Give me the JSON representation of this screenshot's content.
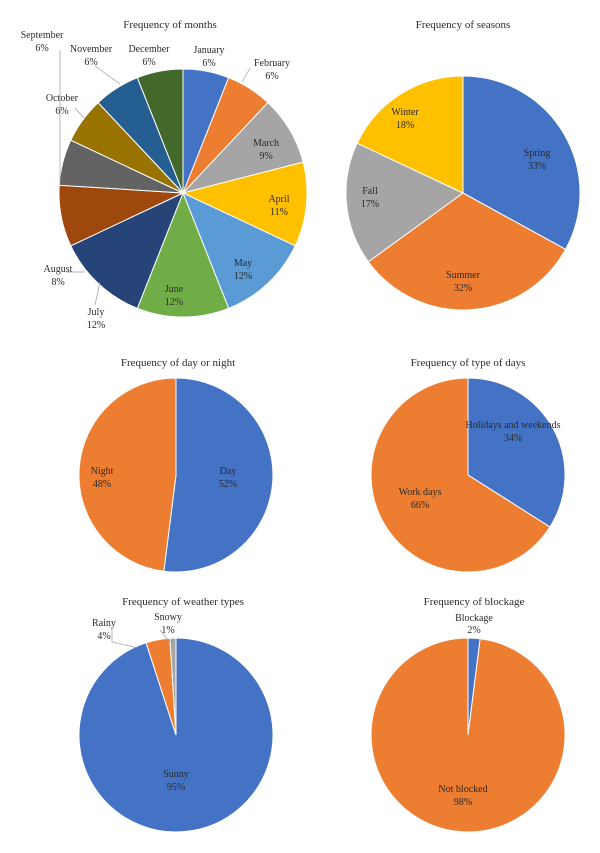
{
  "chart_data": [
    {
      "type": "pie",
      "title": "Frequency of months",
      "slices": [
        {
          "label": "January",
          "value": 6,
          "display": "6%",
          "color": "#4472C4"
        },
        {
          "label": "February",
          "value": 6,
          "display": "6%",
          "color": "#ED7D31"
        },
        {
          "label": "March",
          "value": 9,
          "display": "9%",
          "color": "#A5A5A5"
        },
        {
          "label": "April",
          "value": 11,
          "display": "11%",
          "color": "#FFC000"
        },
        {
          "label": "May",
          "value": 12,
          "display": "12%",
          "color": "#5B9BD5"
        },
        {
          "label": "June",
          "value": 12,
          "display": "12%",
          "color": "#70AD47"
        },
        {
          "label": "July",
          "value": 12,
          "display": "12%",
          "color": "#264478"
        },
        {
          "label": "August",
          "value": 8,
          "display": "8%",
          "color": "#9E480E"
        },
        {
          "label": "",
          "value": 6,
          "display": "",
          "color": "#636363"
        },
        {
          "label": "October",
          "value": 6,
          "display": "6%",
          "color": "#997300"
        },
        {
          "label": "November",
          "value": 6,
          "display": "6%",
          "color": "#255E91"
        },
        {
          "label": "December",
          "value": 6,
          "display": "6%",
          "color": "#43682B"
        }
      ],
      "extra_labels": [
        {
          "label": "September",
          "display": "6%"
        }
      ]
    },
    {
      "type": "pie",
      "title": "Frequency of seasons",
      "slices": [
        {
          "label": "Spring",
          "value": 33,
          "display": "33%",
          "color": "#4472C4"
        },
        {
          "label": "Summer",
          "value": 32,
          "display": "32%",
          "color": "#ED7D31"
        },
        {
          "label": "Fall",
          "value": 17,
          "display": "17%",
          "color": "#A5A5A5"
        },
        {
          "label": "Winter",
          "value": 18,
          "display": "18%",
          "color": "#FFC000"
        }
      ]
    },
    {
      "type": "pie",
      "title": "Frequency of day or night",
      "slices": [
        {
          "label": "Day",
          "value": 52,
          "display": "52%",
          "color": "#4472C4"
        },
        {
          "label": "Night",
          "value": 48,
          "display": "48%",
          "color": "#ED7D31"
        }
      ]
    },
    {
      "type": "pie",
      "title": "Frequency of type of days",
      "slices": [
        {
          "label": "Holidays and weekends",
          "value": 34,
          "display": "34%",
          "color": "#4472C4"
        },
        {
          "label": "Work days",
          "value": 66,
          "display": "66%",
          "color": "#ED7D31"
        }
      ]
    },
    {
      "type": "pie",
      "title": "Frequency of weather types",
      "slices": [
        {
          "label": "Sunny",
          "value": 95,
          "display": "95%",
          "color": "#4472C4"
        },
        {
          "label": "Rainy",
          "value": 4,
          "display": "4%",
          "color": "#ED7D31"
        },
        {
          "label": "Snowy",
          "value": 1,
          "display": "1%",
          "color": "#A5A5A5"
        }
      ]
    },
    {
      "type": "pie",
      "title": "Frequency of blockage",
      "slices": [
        {
          "label": "Blockage",
          "value": 2,
          "display": "2%",
          "color": "#4472C4"
        },
        {
          "label": "Not blocked",
          "value": 98,
          "display": "98%",
          "color": "#ED7D31"
        }
      ]
    }
  ]
}
